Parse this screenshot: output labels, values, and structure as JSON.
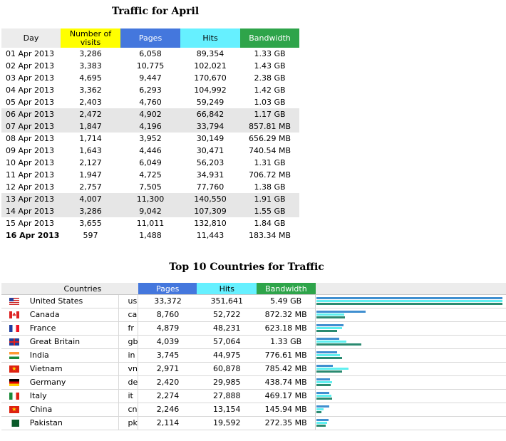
{
  "colors": {
    "visits": "#ffff00",
    "pages": "#4477dd",
    "hits": "#66f0ff",
    "bandwidth": "#2ea44a"
  },
  "daily": {
    "title": "Traffic for April",
    "headers": {
      "day": "Day",
      "visits": "Number of visits",
      "pages": "Pages",
      "hits": "Hits",
      "bandwidth": "Bandwidth"
    },
    "rows": [
      {
        "day": "01 Apr 2013",
        "visits": "3,286",
        "pages": "6,058",
        "hits": "89,354",
        "bandwidth": "1.33 GB",
        "weekend": false
      },
      {
        "day": "02 Apr 2013",
        "visits": "3,383",
        "pages": "10,775",
        "hits": "102,021",
        "bandwidth": "1.43 GB",
        "weekend": false
      },
      {
        "day": "03 Apr 2013",
        "visits": "4,695",
        "pages": "9,447",
        "hits": "170,670",
        "bandwidth": "2.38 GB",
        "weekend": false
      },
      {
        "day": "04 Apr 2013",
        "visits": "3,362",
        "pages": "6,293",
        "hits": "104,992",
        "bandwidth": "1.42 GB",
        "weekend": false
      },
      {
        "day": "05 Apr 2013",
        "visits": "2,403",
        "pages": "4,760",
        "hits": "59,249",
        "bandwidth": "1.03 GB",
        "weekend": false
      },
      {
        "day": "06 Apr 2013",
        "visits": "2,472",
        "pages": "4,902",
        "hits": "66,842",
        "bandwidth": "1.17 GB",
        "weekend": true
      },
      {
        "day": "07 Apr 2013",
        "visits": "1,847",
        "pages": "4,196",
        "hits": "33,794",
        "bandwidth": "857.81 MB",
        "weekend": true
      },
      {
        "day": "08 Apr 2013",
        "visits": "1,714",
        "pages": "3,952",
        "hits": "30,149",
        "bandwidth": "656.29 MB",
        "weekend": false
      },
      {
        "day": "09 Apr 2013",
        "visits": "1,643",
        "pages": "4,446",
        "hits": "30,471",
        "bandwidth": "740.54 MB",
        "weekend": false
      },
      {
        "day": "10 Apr 2013",
        "visits": "2,127",
        "pages": "6,049",
        "hits": "56,203",
        "bandwidth": "1.31 GB",
        "weekend": false
      },
      {
        "day": "11 Apr 2013",
        "visits": "1,947",
        "pages": "4,725",
        "hits": "34,931",
        "bandwidth": "706.72 MB",
        "weekend": false
      },
      {
        "day": "12 Apr 2013",
        "visits": "2,757",
        "pages": "7,505",
        "hits": "77,760",
        "bandwidth": "1.38 GB",
        "weekend": false
      },
      {
        "day": "13 Apr 2013",
        "visits": "4,007",
        "pages": "11,300",
        "hits": "140,550",
        "bandwidth": "1.91 GB",
        "weekend": true
      },
      {
        "day": "14 Apr 2013",
        "visits": "3,286",
        "pages": "9,042",
        "hits": "107,309",
        "bandwidth": "1.55 GB",
        "weekend": true
      },
      {
        "day": "15 Apr 2013",
        "visits": "3,655",
        "pages": "11,011",
        "hits": "132,810",
        "bandwidth": "1.84 GB",
        "weekend": false
      },
      {
        "day": "16 Apr 2013",
        "visits": "597",
        "pages": "1,488",
        "hits": "11,443",
        "bandwidth": "183.34 MB",
        "weekend": false,
        "today": true
      }
    ]
  },
  "countries": {
    "title": "Top 10 Countries for Traffic",
    "headers": {
      "countries": "Countries",
      "pages": "Pages",
      "hits": "Hits",
      "bandwidth": "Bandwidth"
    },
    "rows": [
      {
        "flag": "us-flag-icon",
        "name": "United States",
        "code": "us",
        "pages": "33,372",
        "hits": "351,641",
        "bandwidth": "5.49 GB",
        "bar_pages": 33372,
        "bar_hits": 351641,
        "bar_bw_mb": 5622
      },
      {
        "flag": "ca-flag-icon",
        "name": "Canada",
        "code": "ca",
        "pages": "8,760",
        "hits": "52,722",
        "bandwidth": "872.32 MB",
        "bar_pages": 8760,
        "bar_hits": 52722,
        "bar_bw_mb": 872.32
      },
      {
        "flag": "fr-flag-icon",
        "name": "France",
        "code": "fr",
        "pages": "4,879",
        "hits": "48,231",
        "bandwidth": "623.18 MB",
        "bar_pages": 4879,
        "bar_hits": 48231,
        "bar_bw_mb": 623.18
      },
      {
        "flag": "gb-flag-icon",
        "name": "Great Britain",
        "code": "gb",
        "pages": "4,039",
        "hits": "57,064",
        "bandwidth": "1.33 GB",
        "bar_pages": 4039,
        "bar_hits": 57064,
        "bar_bw_mb": 1362
      },
      {
        "flag": "in-flag-icon",
        "name": "India",
        "code": "in",
        "pages": "3,745",
        "hits": "44,975",
        "bandwidth": "776.61 MB",
        "bar_pages": 3745,
        "bar_hits": 44975,
        "bar_bw_mb": 776.61
      },
      {
        "flag": "vn-flag-icon",
        "name": "Vietnam",
        "code": "vn",
        "pages": "2,971",
        "hits": "60,878",
        "bandwidth": "785.42 MB",
        "bar_pages": 2971,
        "bar_hits": 60878,
        "bar_bw_mb": 785.42
      },
      {
        "flag": "de-flag-icon",
        "name": "Germany",
        "code": "de",
        "pages": "2,420",
        "hits": "29,985",
        "bandwidth": "438.74 MB",
        "bar_pages": 2420,
        "bar_hits": 29985,
        "bar_bw_mb": 438.74
      },
      {
        "flag": "it-flag-icon",
        "name": "Italy",
        "code": "it",
        "pages": "2,274",
        "hits": "27,888",
        "bandwidth": "469.17 MB",
        "bar_pages": 2274,
        "bar_hits": 27888,
        "bar_bw_mb": 469.17
      },
      {
        "flag": "cn-flag-icon",
        "name": "China",
        "code": "cn",
        "pages": "2,246",
        "hits": "13,154",
        "bandwidth": "145.94 MB",
        "bar_pages": 2246,
        "bar_hits": 13154,
        "bar_bw_mb": 145.94
      },
      {
        "flag": "pk-flag-icon",
        "name": "Pakistan",
        "code": "pk",
        "pages": "2,114",
        "hits": "19,592",
        "bandwidth": "272.35 MB",
        "bar_pages": 2114,
        "bar_hits": 19592,
        "bar_bw_mb": 272.35
      }
    ]
  }
}
